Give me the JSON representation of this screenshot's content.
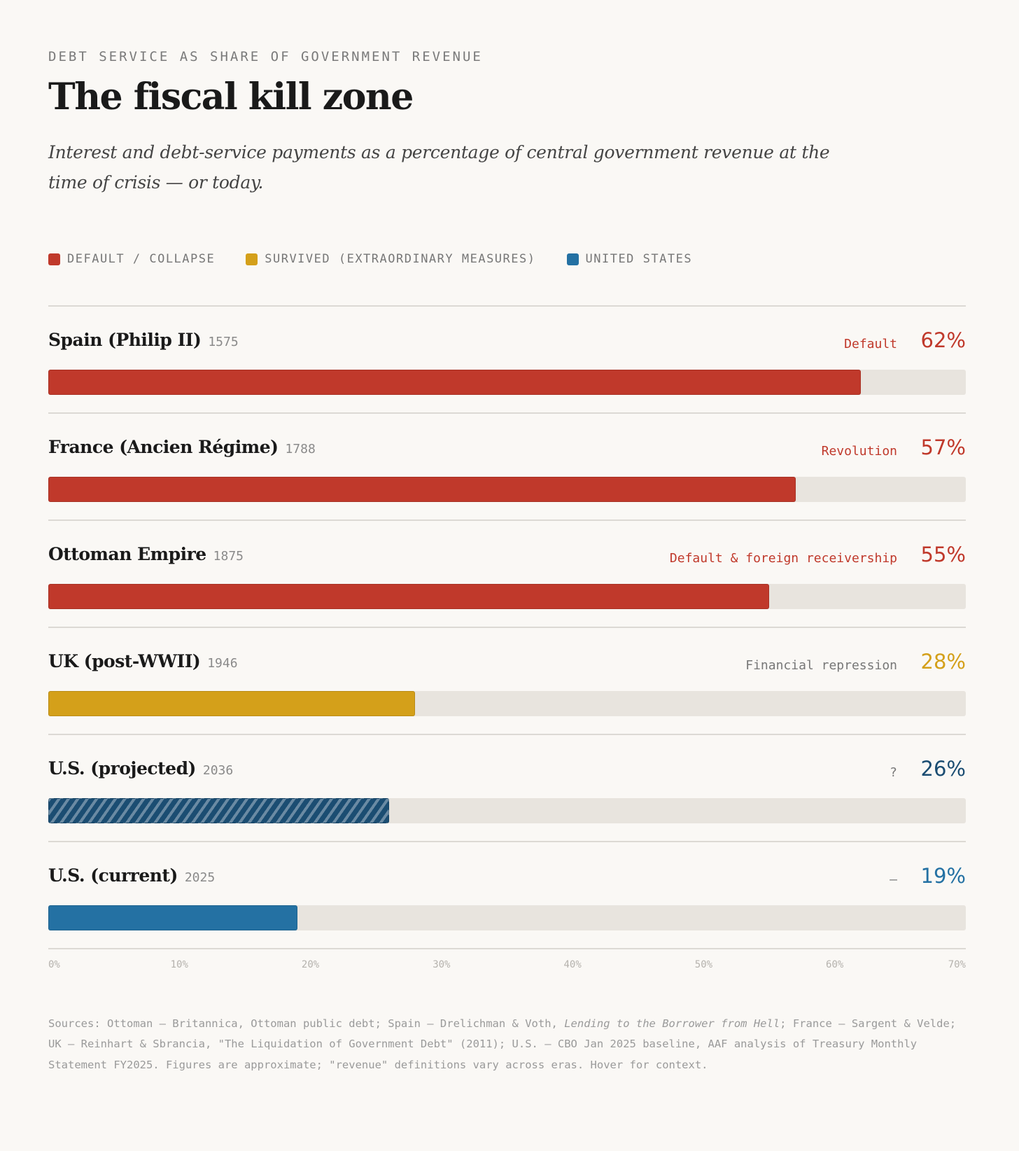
{
  "header": {
    "eyebrow": "DEBT SERVICE AS SHARE OF GOVERNMENT REVENUE",
    "title": "The fiscal kill zone",
    "subtitle": "Interest and debt-service payments as a percentage of central government revenue at the time of crisis — or today."
  },
  "colors": {
    "default": "#c0392b",
    "survived": "#d4a01a",
    "us": "#2471a3",
    "us_projected": "#1b4d72",
    "track": "#e8e4de",
    "muted": "#777777"
  },
  "chart_data": {
    "type": "bar",
    "orientation": "horizontal",
    "title": "The fiscal kill zone",
    "xlim": [
      0,
      70
    ],
    "ticks": [
      "0%",
      "10%",
      "20%",
      "30%",
      "40%",
      "50%",
      "60%",
      "70%"
    ],
    "legend": [
      {
        "key": "default",
        "label": "DEFAULT / COLLAPSE"
      },
      {
        "key": "survived",
        "label": "SURVIVED (EXTRAORDINARY MEASURES)"
      },
      {
        "key": "us",
        "label": "UNITED STATES"
      }
    ],
    "rows": [
      {
        "name": "Spain (Philip II)",
        "year": "1575",
        "status": "Default",
        "value": 62,
        "label": "62%",
        "group": "default"
      },
      {
        "name": "France (Ancien Régime)",
        "year": "1788",
        "status": "Revolution",
        "value": 57,
        "label": "57%",
        "group": "default"
      },
      {
        "name": "Ottoman Empire",
        "year": "1875",
        "status": "Default & foreign receivership",
        "value": 55,
        "label": "55%",
        "group": "default"
      },
      {
        "name": "UK (post-WWII)",
        "year": "1946",
        "status": "Financial repression",
        "value": 28,
        "label": "28%",
        "group": "survived"
      },
      {
        "name": "U.S. (projected)",
        "year": "2036",
        "status": "?",
        "value": 26,
        "label": "26%",
        "group": "us_projected"
      },
      {
        "name": "U.S. (current)",
        "year": "2025",
        "status": "–",
        "value": 19,
        "label": "19%",
        "group": "us"
      }
    ]
  },
  "footer": {
    "pre": "Sources: Ottoman — Britannica, Ottoman public debt; Spain — Drelichman & Voth, ",
    "italic": "Lending to the Borrower from Hell",
    "post": "; France — Sargent & Velde; UK — Reinhart & Sbrancia, \"The Liquidation of Government Debt\" (2011); U.S. — CBO Jan 2025 baseline, AAF analysis of Treasury Monthly Statement FY2025. Figures are approximate; \"revenue\" definitions vary across eras. Hover for context."
  }
}
